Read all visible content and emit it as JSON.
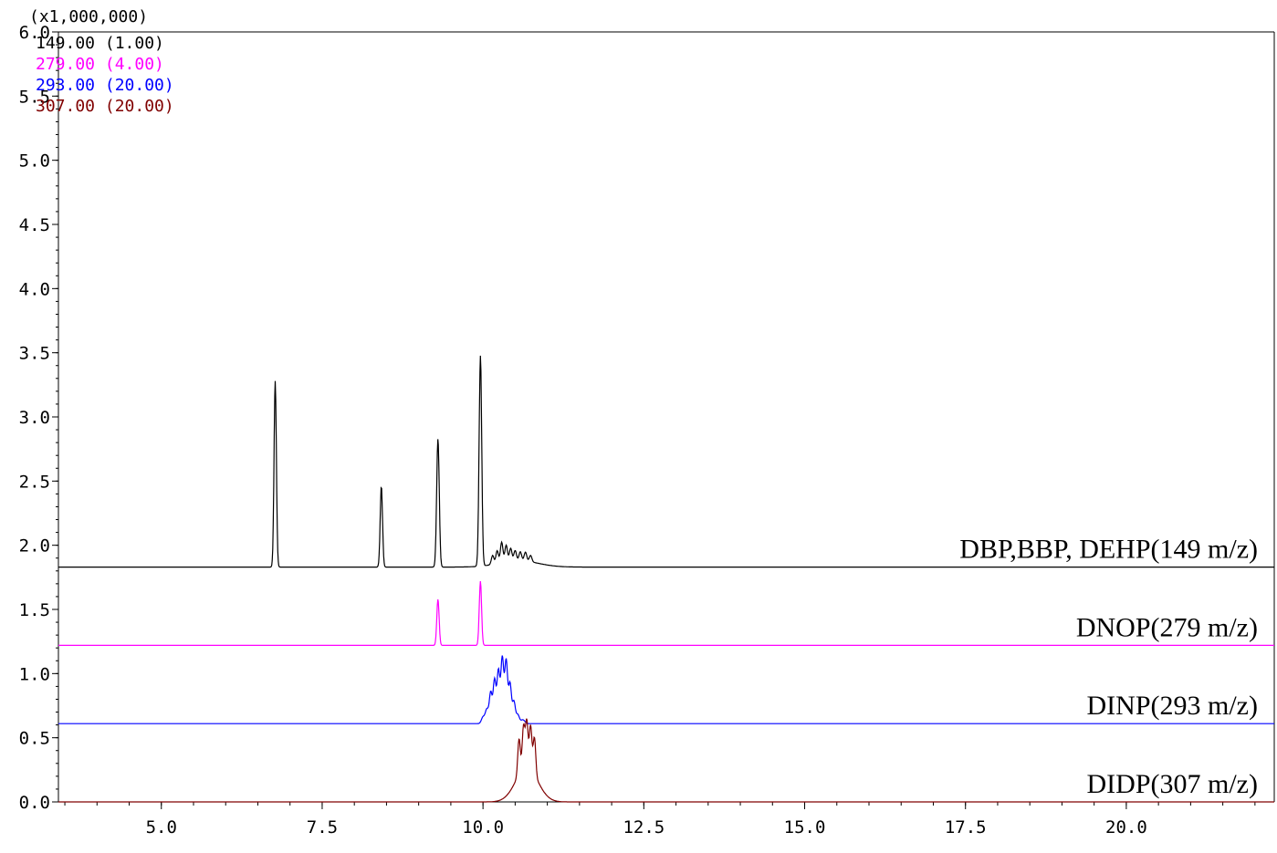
{
  "chart_data": {
    "type": "line",
    "scale_note": "(x1,000,000)",
    "xlim": [
      3.4,
      22.3
    ],
    "ylim": [
      0.0,
      6.0
    ],
    "x_ticks": [
      5.0,
      7.5,
      10.0,
      12.5,
      15.0,
      17.5,
      20.0
    ],
    "x_tick_labels": [
      "5.0",
      "7.5",
      "10.0",
      "12.5",
      "15.0",
      "17.5",
      "20.0"
    ],
    "y_ticks": [
      0.0,
      0.5,
      1.0,
      1.5,
      2.0,
      2.5,
      3.0,
      3.5,
      4.0,
      4.5,
      5.0,
      5.5,
      6.0
    ],
    "y_tick_labels": [
      "0.0",
      "0.5",
      "1.0",
      "1.5",
      "2.0",
      "2.5",
      "3.0",
      "3.5",
      "4.0",
      "4.5",
      "5.0",
      "5.5",
      "6.0"
    ],
    "legend": [
      {
        "label": "149.00  (1.00)",
        "color": "#000000"
      },
      {
        "label": "279.00  (4.00)",
        "color": "#ff00ff"
      },
      {
        "label": "293.00  (20.00)",
        "color": "#0000ff"
      },
      {
        "label": "307.00  (20.00)",
        "color": "#800000"
      }
    ],
    "series": [
      {
        "label": "DBP,BBP, DEHP(149 m/z)",
        "color": "#000000",
        "baseline": 1.83,
        "peaks": [
          {
            "x": 6.77,
            "y": 3.28,
            "w": 0.018
          },
          {
            "x": 8.42,
            "y": 2.46,
            "w": 0.018
          },
          {
            "x": 9.3,
            "y": 2.83,
            "w": 0.02
          },
          {
            "x": 9.96,
            "y": 3.47,
            "w": 0.02
          },
          {
            "x": 10.15,
            "y": 1.9,
            "w": 0.02
          },
          {
            "x": 10.22,
            "y": 1.93,
            "w": 0.02
          },
          {
            "x": 10.29,
            "y": 1.99,
            "w": 0.02
          },
          {
            "x": 10.36,
            "y": 1.96,
            "w": 0.02
          },
          {
            "x": 10.43,
            "y": 1.93,
            "w": 0.02
          },
          {
            "x": 10.5,
            "y": 1.91,
            "w": 0.02
          },
          {
            "x": 10.58,
            "y": 1.9,
            "w": 0.02
          },
          {
            "x": 10.66,
            "y": 1.9,
            "w": 0.02
          },
          {
            "x": 10.74,
            "y": 1.88,
            "w": 0.02
          }
        ],
        "hump": {
          "x": 10.55,
          "y": 1.88,
          "w": 0.3
        }
      },
      {
        "label": "DNOP(279 m/z)",
        "color": "#ff00ff",
        "baseline": 1.22,
        "peaks": [
          {
            "x": 9.3,
            "y": 1.58,
            "w": 0.018
          },
          {
            "x": 9.96,
            "y": 1.72,
            "w": 0.018
          }
        ]
      },
      {
        "label": "DINP(293 m/z)",
        "color": "#0000ff",
        "baseline": 0.61,
        "peaks": [
          {
            "x": 10.0,
            "y": 0.66,
            "w": 0.025
          },
          {
            "x": 10.06,
            "y": 0.72,
            "w": 0.025
          },
          {
            "x": 10.12,
            "y": 0.85,
            "w": 0.022
          },
          {
            "x": 10.18,
            "y": 0.95,
            "w": 0.022
          },
          {
            "x": 10.24,
            "y": 1.02,
            "w": 0.022
          },
          {
            "x": 10.3,
            "y": 1.12,
            "w": 0.022
          },
          {
            "x": 10.36,
            "y": 1.1,
            "w": 0.022
          },
          {
            "x": 10.42,
            "y": 0.92,
            "w": 0.022
          },
          {
            "x": 10.48,
            "y": 0.78,
            "w": 0.022
          },
          {
            "x": 10.54,
            "y": 0.68,
            "w": 0.025
          },
          {
            "x": 10.62,
            "y": 0.64,
            "w": 0.03
          }
        ]
      },
      {
        "label": "DIDP(307 m/z)",
        "color": "#800000",
        "baseline": 0.0,
        "hump": {
          "x": 10.68,
          "y": 0.27,
          "w": 0.17
        },
        "peaks": [
          {
            "x": 10.56,
            "y": 0.28,
            "w": 0.02
          },
          {
            "x": 10.63,
            "y": 0.33,
            "w": 0.02
          },
          {
            "x": 10.68,
            "y": 0.36,
            "w": 0.02
          },
          {
            "x": 10.74,
            "y": 0.34,
            "w": 0.02
          },
          {
            "x": 10.8,
            "y": 0.29,
            "w": 0.02
          }
        ]
      }
    ]
  }
}
